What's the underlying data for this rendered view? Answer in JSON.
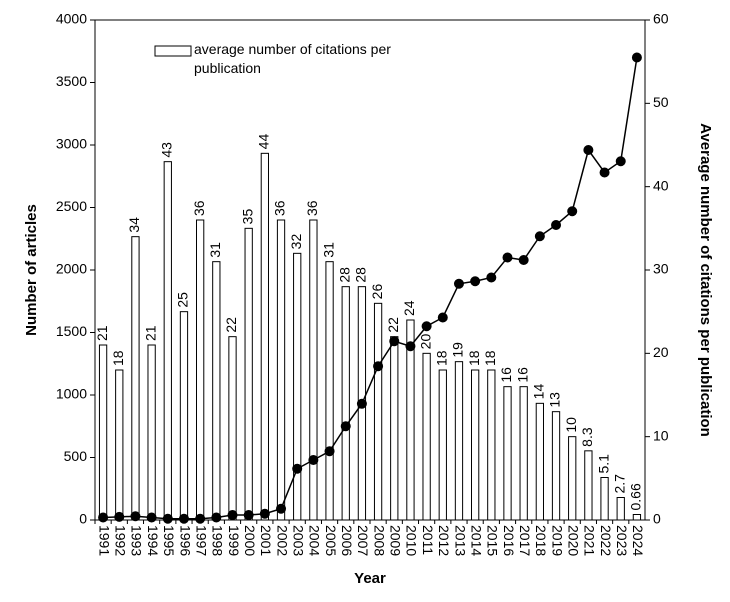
{
  "chart_data": {
    "type": "combo",
    "ylabel": "Number of articles",
    "y2label": "Average number of citations per publication",
    "xlabel": "Year",
    "categories": [
      "1991",
      "1992",
      "1993",
      "1994",
      "1995",
      "1996",
      "1997",
      "1998",
      "1999",
      "2000",
      "2001",
      "2002",
      "2003",
      "2004",
      "2005",
      "2006",
      "2007",
      "2008",
      "2009",
      "2010",
      "2011",
      "2012",
      "2013",
      "2014",
      "2015",
      "2016",
      "2017",
      "2018",
      "2019",
      "2020",
      "2021",
      "2022",
      "2023",
      "2024"
    ],
    "series": [
      {
        "name": "average number of citations per publication",
        "type": "bar",
        "axis": "y2",
        "color": "#ffffff",
        "values": [
          21,
          18,
          34,
          21,
          43,
          25,
          36,
          31,
          22,
          35,
          44,
          36,
          32,
          36,
          31,
          28,
          28,
          26,
          22,
          24,
          20,
          18,
          19,
          18,
          18,
          16,
          16,
          14,
          13,
          10,
          8.3,
          5.1,
          2.7,
          0.66
        ]
      },
      {
        "type": "line",
        "color": "#000000",
        "values": [
          20,
          25,
          30,
          20,
          10,
          10,
          10,
          20,
          40,
          40,
          50,
          90,
          410,
          480,
          550,
          750,
          930,
          1230,
          1430,
          1390,
          1550,
          1620,
          1890,
          1910,
          1940,
          2100,
          2080,
          2270,
          2360,
          2470,
          2960,
          2780,
          2870,
          3700
        ]
      }
    ],
    "ylim": [
      0,
      4000
    ],
    "yticks": [
      0,
      500,
      1000,
      1500,
      2000,
      2500,
      3000,
      3500,
      4000
    ],
    "y2lim": [
      0,
      60
    ],
    "y2ticks": [
      0,
      10,
      20,
      30,
      40,
      50,
      60
    ]
  }
}
